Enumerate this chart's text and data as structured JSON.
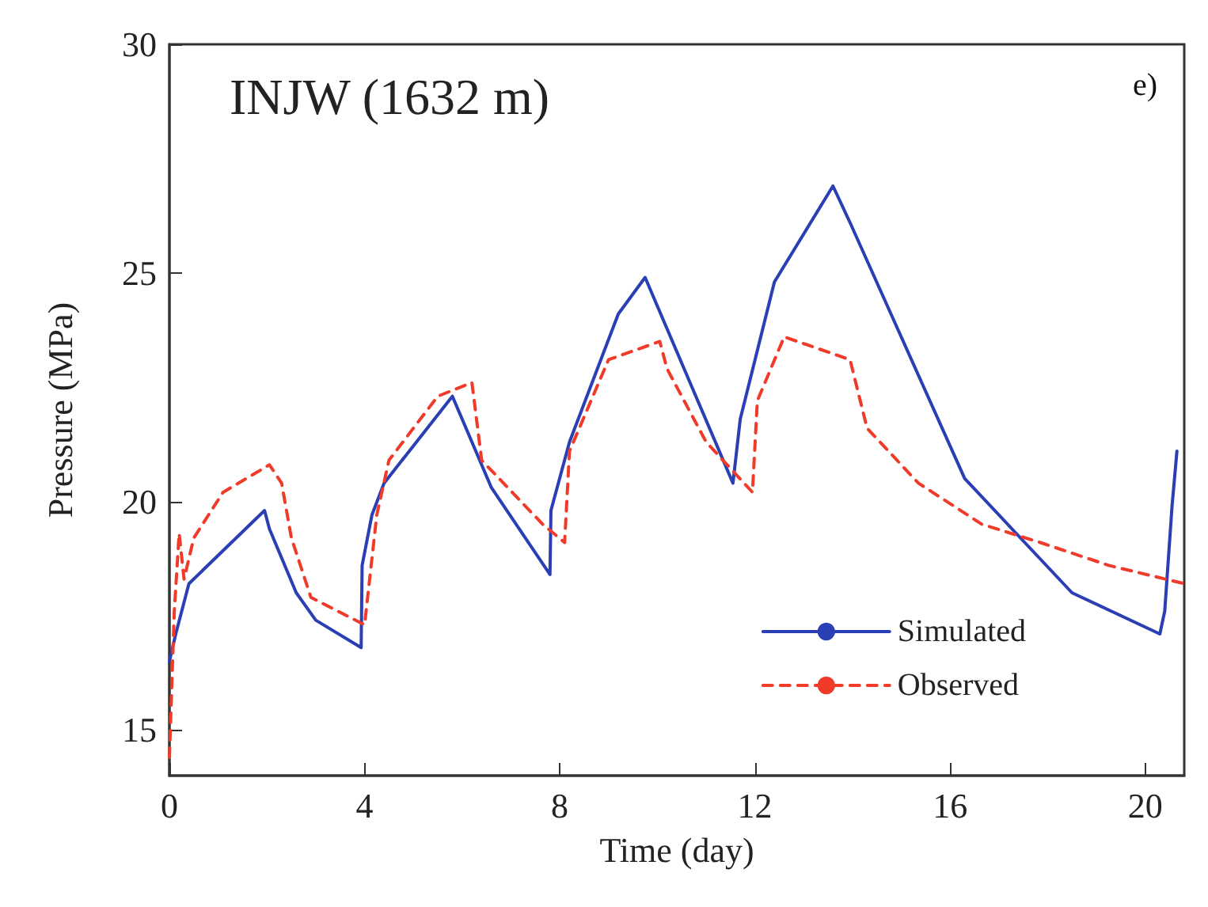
{
  "chart_data": {
    "type": "line",
    "title": "INJW (1632 m)",
    "xlabel": "Time (day)",
    "ylabel": "Pressure (MPa)",
    "annotations": [
      "e)"
    ],
    "xlim": [
      0,
      20.8
    ],
    "xticks": [
      0,
      4,
      8,
      12,
      16,
      20
    ],
    "ylim": [
      14,
      30
    ],
    "yticks": [
      15,
      20,
      25,
      30
    ],
    "grid": false,
    "legend": "bottom right",
    "marker": "none",
    "series": [
      {
        "name": "Simulated",
        "color": "#2b3fb5",
        "line_style": "solid",
        "x": [
          0,
          0.13,
          0.4,
          1.95,
          2.05,
          2.6,
          3.0,
          3.93,
          3.95,
          4.15,
          4.4,
          5.8,
          6.6,
          7.8,
          7.82,
          8.2,
          9.2,
          9.75,
          11.55,
          11.7,
          12.4,
          13.6,
          13.95,
          16.3,
          18.5,
          20.3,
          20.4,
          20.55,
          20.65
        ],
        "values": [
          16.5,
          17.1,
          18.2,
          19.8,
          19.4,
          18.0,
          17.4,
          16.8,
          18.6,
          19.7,
          20.4,
          22.3,
          20.3,
          18.4,
          19.8,
          21.3,
          24.1,
          24.9,
          20.4,
          21.8,
          24.8,
          26.9,
          26.1,
          20.5,
          18.0,
          17.1,
          17.6,
          19.9,
          21.1
        ]
      },
      {
        "name": "Observed",
        "color": "#f03a2a",
        "line_style": "dashed",
        "x": [
          0,
          0.1,
          0.2,
          0.3,
          0.5,
          1.1,
          2.05,
          2.3,
          2.5,
          2.9,
          4.0,
          4.25,
          4.5,
          5.5,
          6.2,
          6.4,
          7.65,
          8.1,
          8.2,
          9.0,
          10.05,
          10.2,
          11.0,
          11.95,
          12.05,
          12.6,
          13.95,
          14.3,
          15.35,
          16.65,
          17.85,
          19.25,
          20.8
        ],
        "values": [
          14.4,
          17.6,
          19.3,
          18.3,
          19.2,
          20.2,
          20.8,
          20.4,
          19.2,
          17.9,
          17.3,
          19.7,
          20.9,
          22.3,
          22.6,
          20.9,
          19.5,
          19.1,
          21.1,
          23.1,
          23.5,
          22.9,
          21.3,
          20.2,
          22.2,
          23.6,
          23.1,
          21.6,
          20.4,
          19.5,
          19.1,
          18.6,
          18.2
        ]
      }
    ]
  }
}
